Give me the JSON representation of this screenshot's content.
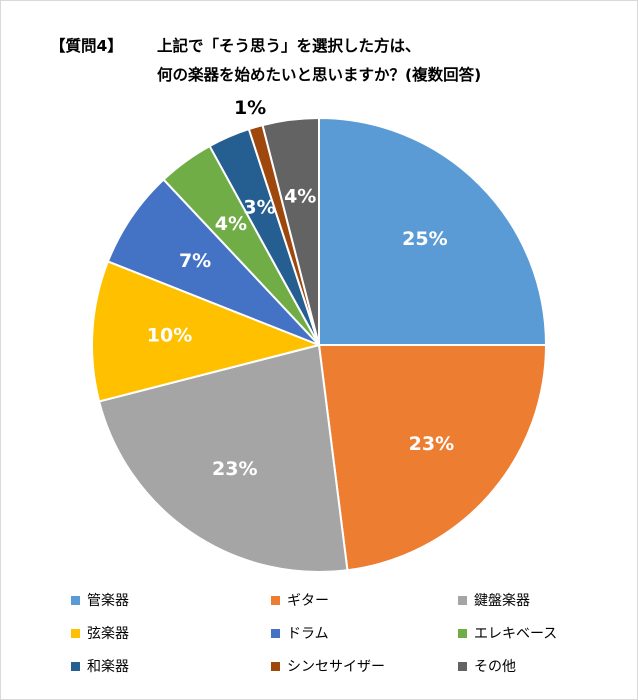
{
  "title": {
    "tag": "【質問4】",
    "line1": "上記で「そう思う」を選択した方は、",
    "line2": "何の楽器を始めたいと思いますか？(複数回答)"
  },
  "chart_data": {
    "type": "pie",
    "start_angle": "12 o'clock",
    "direction": "clockwise",
    "legend_position": "bottom",
    "slices": [
      {
        "name": "管楽器",
        "value": 25,
        "label": "25%",
        "color": "#5b9bd5",
        "label_color": "#ffffff"
      },
      {
        "name": "ギター",
        "value": 23,
        "label": "23%",
        "color": "#ed7d31",
        "label_color": "#ffffff"
      },
      {
        "name": "鍵盤楽器",
        "value": 23,
        "label": "23%",
        "color": "#a5a5a5",
        "label_color": "#ffffff"
      },
      {
        "name": "弦楽器",
        "value": 10,
        "label": "10%",
        "color": "#ffc000",
        "label_color": "#ffffff"
      },
      {
        "name": "ドラム",
        "value": 7,
        "label": "7%",
        "color": "#4472c4",
        "label_color": "#ffffff"
      },
      {
        "name": "エレキベース",
        "value": 4,
        "label": "4%",
        "color": "#70ad47",
        "label_color": "#ffffff"
      },
      {
        "name": "和楽器",
        "value": 3,
        "label": "3%",
        "color": "#255e91",
        "label_color": "#ffffff"
      },
      {
        "name": "シンセサイザー",
        "value": 1,
        "label": "1%",
        "color": "#9e480e",
        "label_color": "#000000",
        "label_outside": true
      },
      {
        "name": "その他",
        "value": 4,
        "label": "4%",
        "color": "#636363",
        "label_color": "#ffffff"
      }
    ]
  }
}
